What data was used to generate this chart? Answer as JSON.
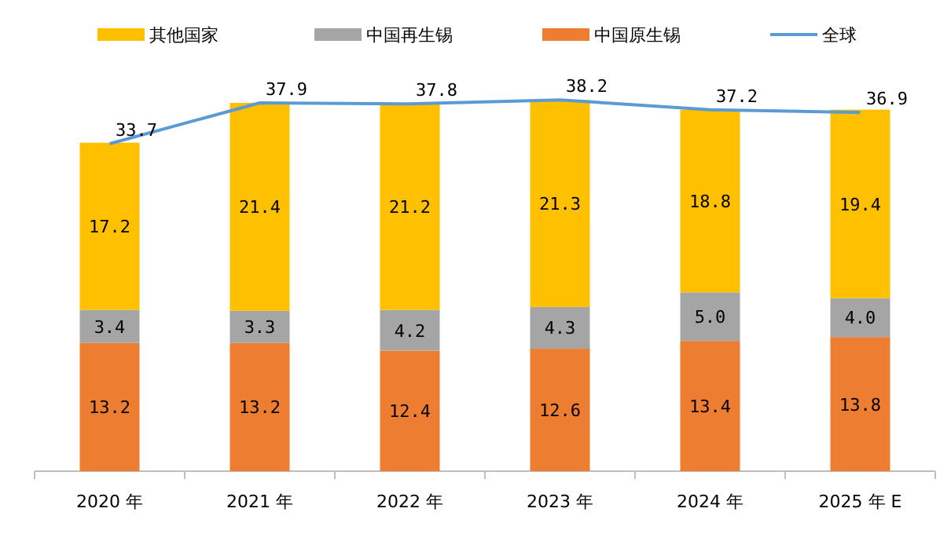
{
  "chart_data": {
    "type": "bar",
    "stacked": true,
    "categories": [
      "2020 年",
      "2021 年",
      "2022 年",
      "2023 年",
      "2024 年",
      "2025 年 E"
    ],
    "series": [
      {
        "name": "中国原生锡",
        "color": "#ed7d31",
        "values": [
          13.2,
          13.2,
          12.4,
          12.6,
          13.4,
          13.8
        ]
      },
      {
        "name": "中国再生锡",
        "color": "#a5a5a5",
        "values": [
          3.4,
          3.3,
          4.2,
          4.3,
          5.0,
          4.0
        ],
        "value_labels": [
          "3.4",
          "3.3",
          "4.2",
          "4.3",
          "5.0",
          "4.0"
        ]
      },
      {
        "name": "其他国家",
        "color": "#ffc000",
        "values": [
          17.2,
          21.4,
          21.2,
          21.3,
          18.8,
          19.4
        ]
      },
      {
        "name": "全球",
        "type": "line",
        "color": "#5b9bd5",
        "values": [
          33.7,
          37.9,
          37.8,
          38.2,
          37.2,
          36.9
        ]
      }
    ],
    "data_labels": true,
    "legend": "top",
    "marker": "none"
  }
}
